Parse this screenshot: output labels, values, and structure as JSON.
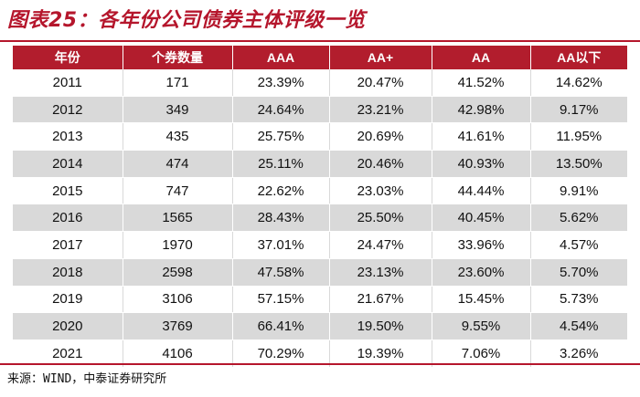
{
  "figure": {
    "title": "图表25：各年份公司债券主体评级一览",
    "source": "来源：WIND，中泰证券研究所"
  },
  "table": {
    "headers": [
      "年份",
      "个券数量",
      "AAA",
      "AA+",
      "AA",
      "AA以下"
    ],
    "rows": [
      [
        "2011",
        "171",
        "23.39%",
        "20.47%",
        "41.52%",
        "14.62%"
      ],
      [
        "2012",
        "349",
        "24.64%",
        "23.21%",
        "42.98%",
        "9.17%"
      ],
      [
        "2013",
        "435",
        "25.75%",
        "20.69%",
        "41.61%",
        "11.95%"
      ],
      [
        "2014",
        "474",
        "25.11%",
        "20.46%",
        "40.93%",
        "13.50%"
      ],
      [
        "2015",
        "747",
        "22.62%",
        "23.03%",
        "44.44%",
        "9.91%"
      ],
      [
        "2016",
        "1565",
        "28.43%",
        "25.50%",
        "40.45%",
        "5.62%"
      ],
      [
        "2017",
        "1970",
        "37.01%",
        "24.47%",
        "33.96%",
        "4.57%"
      ],
      [
        "2018",
        "2598",
        "47.58%",
        "23.13%",
        "23.60%",
        "5.70%"
      ],
      [
        "2019",
        "3106",
        "57.15%",
        "21.67%",
        "15.45%",
        "5.73%"
      ],
      [
        "2020",
        "3769",
        "66.41%",
        "19.50%",
        "9.55%",
        "4.54%"
      ],
      [
        "2021",
        "4106",
        "70.29%",
        "19.39%",
        "7.06%",
        "3.26%"
      ]
    ]
  },
  "colors": {
    "accent": "#b5162c",
    "header_bg": "#b21d2d",
    "stripe": "#d9d9d9"
  }
}
